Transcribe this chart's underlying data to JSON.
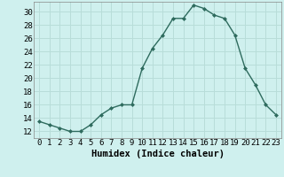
{
  "x": [
    0,
    1,
    2,
    3,
    4,
    5,
    6,
    7,
    8,
    9,
    10,
    11,
    12,
    13,
    14,
    15,
    16,
    17,
    18,
    19,
    20,
    21,
    22,
    23
  ],
  "y": [
    13.5,
    13.0,
    12.5,
    12.0,
    12.0,
    13.0,
    14.5,
    15.5,
    16.0,
    16.0,
    21.5,
    24.5,
    26.5,
    29.0,
    29.0,
    31.0,
    30.5,
    29.5,
    29.0,
    26.5,
    21.5,
    19.0,
    16.0,
    14.5
  ],
  "line_color": "#2e6b5e",
  "marker": "D",
  "marker_size": 2.0,
  "bg_color": "#cff0ee",
  "grid_color": "#b8ddd9",
  "xlabel": "Humidex (Indice chaleur)",
  "ylabel_ticks": [
    12,
    14,
    16,
    18,
    20,
    22,
    24,
    26,
    28,
    30
  ],
  "ylim": [
    11.0,
    31.5
  ],
  "xlim": [
    -0.5,
    23.5
  ],
  "xtick_labels": [
    "0",
    "1",
    "2",
    "3",
    "4",
    "5",
    "6",
    "7",
    "8",
    "9",
    "10",
    "11",
    "12",
    "13",
    "14",
    "15",
    "16",
    "17",
    "18",
    "19",
    "20",
    "21",
    "22",
    "23"
  ],
  "tick_fontsize": 6.5,
  "xlabel_fontsize": 7.5,
  "line_width": 1.0
}
